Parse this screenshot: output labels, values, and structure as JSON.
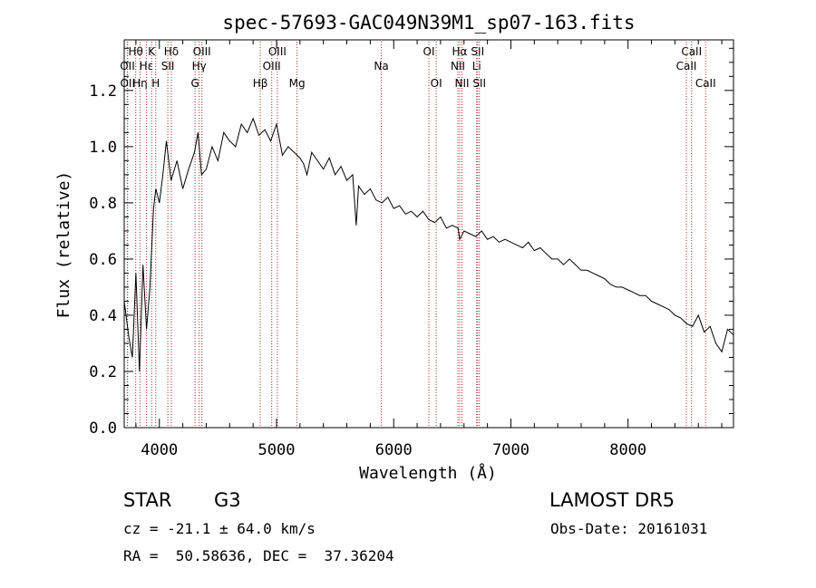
{
  "chart_data": {
    "type": "line",
    "title": "spec-57693-GAC049N39M1_sp07-163.fits",
    "xlabel": "Wavelength (Å)",
    "ylabel": "Flux (relative)",
    "xlim": [
      3700,
      8900
    ],
    "ylim": [
      0.0,
      1.38
    ],
    "xticks": [
      4000,
      5000,
      6000,
      7000,
      8000
    ],
    "yticks": [
      0.0,
      0.2,
      0.4,
      0.6,
      0.8,
      1.0,
      1.2
    ],
    "grid": false,
    "line_color": "#000000",
    "marker_color": "#a52a2a",
    "series": [
      {
        "x": [
          3700,
          3740,
          3770,
          3800,
          3830,
          3860,
          3890,
          3920,
          3950,
          3970,
          4000,
          4030,
          4060,
          4100,
          4150,
          4200,
          4250,
          4300,
          4330,
          4360,
          4400,
          4450,
          4500,
          4550,
          4600,
          4650,
          4700,
          4750,
          4800,
          4850,
          4900,
          4950,
          5000,
          5050,
          5100,
          5150,
          5200,
          5230,
          5260,
          5300,
          5350,
          5400,
          5450,
          5500,
          5550,
          5600,
          5650,
          5680,
          5700,
          5750,
          5800,
          5850,
          5900,
          5950,
          6000,
          6050,
          6100,
          6150,
          6200,
          6250,
          6300,
          6350,
          6400,
          6450,
          6500,
          6550,
          6563,
          6600,
          6650,
          6700,
          6750,
          6800,
          6850,
          6900,
          6950,
          7000,
          7050,
          7100,
          7150,
          7200,
          7250,
          7300,
          7350,
          7400,
          7450,
          7500,
          7550,
          7600,
          7650,
          7700,
          7750,
          7800,
          7850,
          7900,
          7950,
          8000,
          8050,
          8100,
          8150,
          8200,
          8250,
          8300,
          8350,
          8400,
          8450,
          8500,
          8550,
          8600,
          8650,
          8700,
          8750,
          8800,
          8850,
          8900
        ],
        "y": [
          0.45,
          0.32,
          0.25,
          0.55,
          0.2,
          0.58,
          0.35,
          0.5,
          0.78,
          0.85,
          0.8,
          0.9,
          1.02,
          0.88,
          0.95,
          0.85,
          0.92,
          0.98,
          1.05,
          0.9,
          0.92,
          1.0,
          0.95,
          1.05,
          1.02,
          1.0,
          1.08,
          1.05,
          1.1,
          1.04,
          1.06,
          1.02,
          1.08,
          0.97,
          1.0,
          0.98,
          0.96,
          0.94,
          0.9,
          0.98,
          0.95,
          0.92,
          0.96,
          0.9,
          0.93,
          0.88,
          0.9,
          0.72,
          0.86,
          0.83,
          0.85,
          0.81,
          0.8,
          0.82,
          0.78,
          0.79,
          0.76,
          0.77,
          0.75,
          0.77,
          0.74,
          0.73,
          0.75,
          0.71,
          0.72,
          0.71,
          0.67,
          0.7,
          0.69,
          0.68,
          0.7,
          0.67,
          0.68,
          0.66,
          0.67,
          0.66,
          0.65,
          0.64,
          0.66,
          0.63,
          0.64,
          0.62,
          0.6,
          0.6,
          0.58,
          0.6,
          0.58,
          0.56,
          0.56,
          0.55,
          0.54,
          0.53,
          0.51,
          0.5,
          0.5,
          0.49,
          0.48,
          0.47,
          0.47,
          0.45,
          0.44,
          0.43,
          0.42,
          0.4,
          0.39,
          0.37,
          0.36,
          0.4,
          0.34,
          0.36,
          0.3,
          0.27,
          0.35,
          0.33
        ]
      }
    ],
    "lines": [
      {
        "label": "Hθ",
        "wavelength": 3798,
        "row": 1
      },
      {
        "label": "OII",
        "wavelength": 3727,
        "row": 2
      },
      {
        "label": "OII",
        "wavelength": 3729,
        "row": 3
      },
      {
        "label": "Hη",
        "wavelength": 3835,
        "row": 3
      },
      {
        "label": "K",
        "wavelength": 3934,
        "row": 1
      },
      {
        "label": "Hε",
        "wavelength": 3889,
        "row": 2
      },
      {
        "label": "H",
        "wavelength": 3969,
        "row": 3
      },
      {
        "label": "Hδ",
        "wavelength": 4102,
        "row": 1
      },
      {
        "label": "SII",
        "wavelength": 4072,
        "row": 2
      },
      {
        "label": "OIII",
        "wavelength": 4363,
        "row": 1
      },
      {
        "label": "Hγ",
        "wavelength": 4340,
        "row": 2
      },
      {
        "label": "G",
        "wavelength": 4305,
        "row": 3
      },
      {
        "label": "Hβ",
        "wavelength": 4861,
        "row": 3
      },
      {
        "label": "OIII",
        "wavelength": 5007,
        "row": 1
      },
      {
        "label": "OIII",
        "wavelength": 4959,
        "row": 2
      },
      {
        "label": "Mg",
        "wavelength": 5175,
        "row": 3
      },
      {
        "label": "Na",
        "wavelength": 5894,
        "row": 2
      },
      {
        "label": "OI",
        "wavelength": 6300,
        "row": 1
      },
      {
        "label": "OI",
        "wavelength": 6363,
        "row": 3
      },
      {
        "label": "Hα",
        "wavelength": 6563,
        "row": 1
      },
      {
        "label": "NII",
        "wavelength": 6548,
        "row": 2
      },
      {
        "label": "NII",
        "wavelength": 6583,
        "row": 3
      },
      {
        "label": "SII",
        "wavelength": 6716,
        "row": 1
      },
      {
        "label": "Li",
        "wavelength": 6708,
        "row": 2
      },
      {
        "label": "SII",
        "wavelength": 6731,
        "row": 3
      },
      {
        "label": "CaII",
        "wavelength": 8542,
        "row": 1
      },
      {
        "label": "CaII",
        "wavelength": 8498,
        "row": 2
      },
      {
        "label": "CaII",
        "wavelength": 8662,
        "row": 3
      }
    ]
  },
  "info": {
    "object_class": "STAR",
    "subclass": "G3",
    "survey": "LAMOST DR5",
    "redshift": "cz = -21.1 ± 64.0 km/s",
    "obs_date": "Obs-Date: 20161031",
    "coords": "RA =  50.58636, DEC =  37.36204"
  }
}
